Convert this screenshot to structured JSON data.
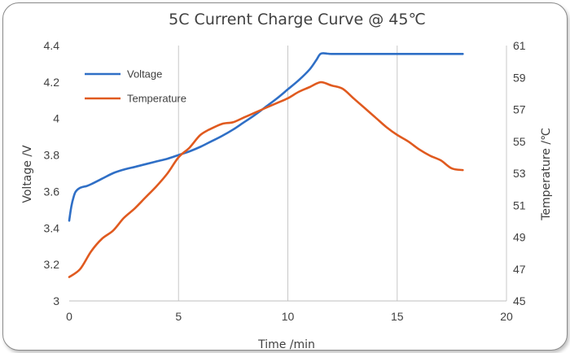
{
  "chart_data": {
    "type": "line",
    "title": "5C Current Charge Curve @ 45℃",
    "xlabel": "Time /min",
    "ylabel": "Voltage /V",
    "y2label": "Temperature /℃",
    "xlim": [
      0,
      20
    ],
    "ylim": [
      3,
      4.4
    ],
    "y2lim": [
      45,
      61
    ],
    "xticks": [
      "0",
      "5",
      "10",
      "15",
      "20"
    ],
    "yticks": [
      "3",
      "3.2",
      "3.4",
      "3.6",
      "3.8",
      "4",
      "4.2",
      "4.4"
    ],
    "y2ticks": [
      "45",
      "47",
      "49",
      "51",
      "53",
      "55",
      "57",
      "59",
      "61"
    ],
    "grid": "vertical",
    "legend": "top-left",
    "series": [
      {
        "name": "Voltage",
        "axis": "left",
        "color": "#2f6fc6",
        "x": [
          0,
          0.1,
          0.2,
          0.3,
          0.5,
          0.8,
          1,
          1.5,
          2,
          2.5,
          3,
          3.5,
          4,
          4.5,
          5,
          5.5,
          6,
          6.5,
          7,
          7.5,
          8,
          8.5,
          9,
          9.5,
          10,
          10.5,
          11,
          11.3,
          11.5,
          11.8,
          12,
          13,
          14,
          15,
          16,
          17,
          18
        ],
        "values": [
          3.44,
          3.52,
          3.57,
          3.6,
          3.62,
          3.63,
          3.64,
          3.67,
          3.7,
          3.72,
          3.735,
          3.75,
          3.765,
          3.78,
          3.8,
          3.82,
          3.845,
          3.875,
          3.905,
          3.94,
          3.98,
          4.02,
          4.065,
          4.11,
          4.16,
          4.21,
          4.27,
          4.32,
          4.355,
          4.356,
          4.354,
          4.354,
          4.354,
          4.354,
          4.354,
          4.354,
          4.354
        ]
      },
      {
        "name": "Temperature",
        "axis": "right",
        "color": "#e05a1f",
        "x": [
          0,
          0.5,
          1,
          1.5,
          2,
          2.5,
          3,
          3.5,
          4,
          4.5,
          5,
          5.5,
          6,
          6.5,
          7,
          7.5,
          8,
          8.5,
          9,
          9.5,
          10,
          10.5,
          11,
          11.5,
          12,
          12.5,
          13,
          13.5,
          14,
          14.5,
          15,
          15.5,
          16,
          16.5,
          17,
          17.5,
          18
        ],
        "values": [
          46.5,
          47,
          48.1,
          48.9,
          49.4,
          50.2,
          50.8,
          51.5,
          52.2,
          53,
          54,
          54.6,
          55.4,
          55.8,
          56.1,
          56.2,
          56.5,
          56.8,
          57.1,
          57.4,
          57.7,
          58.1,
          58.4,
          58.7,
          58.5,
          58.3,
          57.7,
          57.1,
          56.5,
          55.9,
          55.4,
          55,
          54.5,
          54.1,
          53.8,
          53.3,
          53.2
        ]
      }
    ]
  }
}
